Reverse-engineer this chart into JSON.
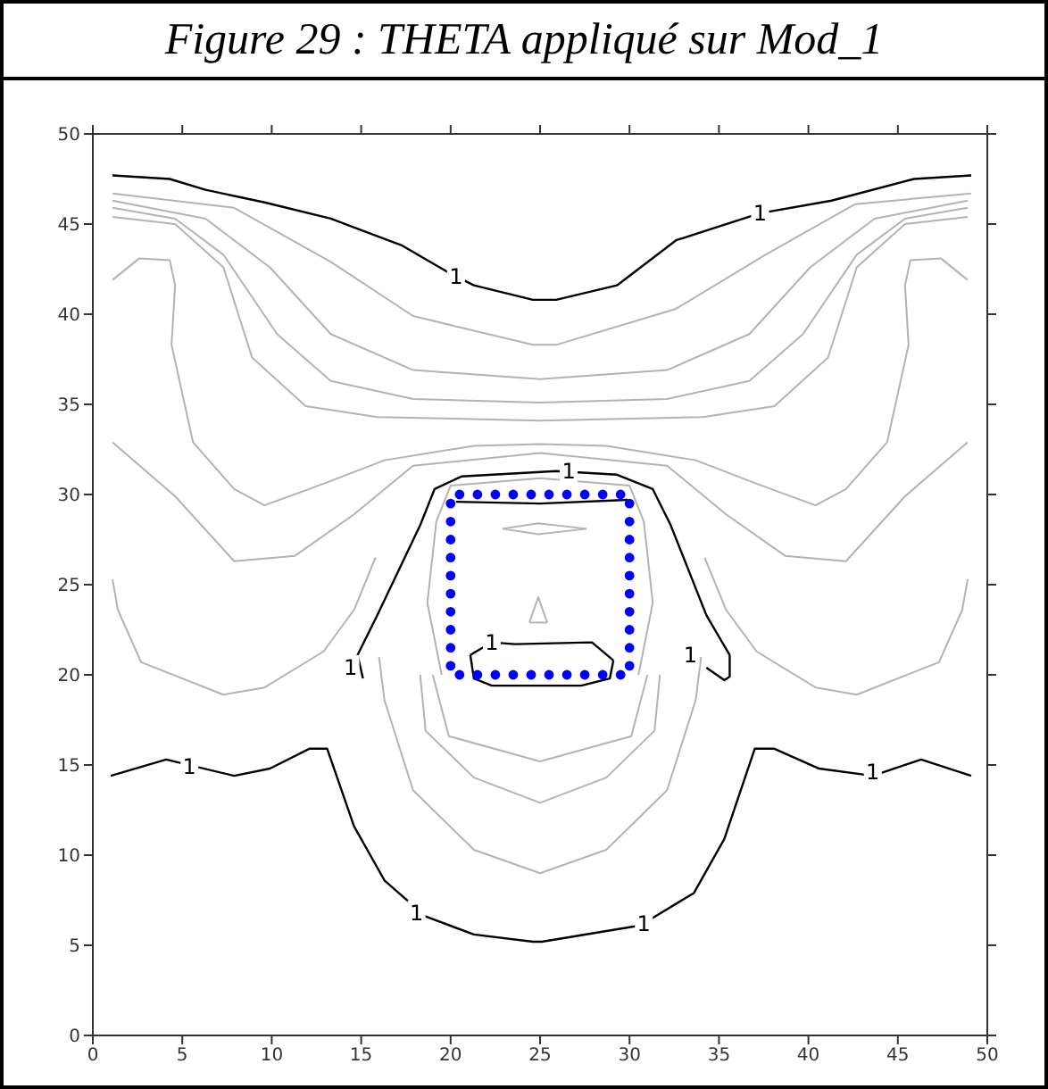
{
  "chart_data": {
    "type": "line",
    "title": "Figure 29 : THETA appliqué sur Mod_1",
    "xlim": [
      0,
      50
    ],
    "ylim": [
      0,
      50
    ],
    "xticks": [
      0,
      5,
      10,
      15,
      20,
      25,
      30,
      35,
      40,
      45,
      50
    ],
    "yticks": [
      0,
      5,
      10,
      15,
      20,
      25,
      30,
      35,
      40,
      45,
      50
    ],
    "grid": false,
    "marker": "none",
    "series": [
      {
        "type": "line",
        "color": "#000000",
        "x": [
          1.1,
          4.3,
          6.3,
          9.6,
          13.3,
          17.3,
          19.9,
          21.3,
          24.6,
          25.9,
          29.3,
          32.6,
          37.3,
          41.3,
          45.9,
          49.1
        ],
        "values": [
          47.7,
          47.5,
          46.9,
          46.2,
          45.3,
          43.8,
          42.3,
          41.6,
          40.8,
          40.8,
          41.6,
          44.1,
          45.6,
          46.3,
          47.5,
          47.7
        ]
      },
      {
        "type": "line",
        "color": "#000000",
        "x": [
          1.0,
          4.1,
          7.9,
          9.9,
          12.1,
          13.1,
          14.6,
          16.3,
          18.6,
          21.3,
          24.6,
          25.1,
          30.6,
          33.6,
          35.3,
          37.0,
          38.1,
          40.6,
          43.6,
          46.3,
          49.1
        ],
        "values": [
          14.4,
          15.3,
          14.4,
          14.8,
          15.9,
          15.9,
          11.6,
          8.6,
          6.6,
          5.6,
          5.2,
          5.2,
          6.1,
          7.9,
          10.9,
          15.9,
          15.9,
          14.8,
          14.4,
          15.3,
          14.4
        ]
      },
      {
        "type": "line",
        "color": "#000000",
        "x": [
          15.1,
          14.8,
          15.9,
          18.3,
          19.1,
          20.6,
          25.9,
          29.3,
          31.3,
          32.3,
          34.3,
          35.6,
          35.6,
          35.3,
          34.3
        ],
        "values": [
          19.8,
          21.1,
          23.3,
          28.3,
          30.3,
          31.0,
          31.3,
          31.1,
          30.3,
          28.3,
          23.3,
          21.1,
          19.9,
          19.7,
          20.4
        ]
      },
      {
        "color": "#000000",
        "x": [
          21.1,
          22.3,
          23.6,
          27.9,
          29.1
        ],
        "values": [
          21.1,
          21.8,
          21.7,
          21.8,
          20.8
        ]
      },
      {
        "color": "#000000",
        "x": [
          21.1,
          21.3,
          22.3,
          27.3,
          28.9,
          29.1
        ],
        "values": [
          21.1,
          19.8,
          19.4,
          19.4,
          19.8,
          20.8
        ]
      },
      {
        "type": "line",
        "color": "#000000",
        "x": [
          20.3,
          25.0,
          29.9
        ],
        "values": [
          29.6,
          29.5,
          29.7
        ]
      },
      {
        "type": "line",
        "color": "#b3b3b3",
        "x": [
          1.1,
          7.9,
          13.3,
          17.9,
          24.6,
          25.9,
          32.6,
          37.6,
          42.6,
          49.1
        ],
        "values": [
          46.7,
          45.9,
          42.9,
          39.9,
          38.3,
          38.3,
          40.3,
          43.3,
          46.1,
          46.7
        ]
      },
      {
        "type": "line",
        "color": "#b3b3b3",
        "x": [
          1.1,
          6.3,
          9.9,
          13.3,
          17.9,
          25.0,
          32.1,
          36.7,
          40.1,
          43.7,
          48.9
        ],
        "values": [
          46.3,
          45.3,
          42.6,
          38.9,
          36.9,
          36.4,
          36.9,
          38.9,
          42.6,
          45.3,
          46.3
        ]
      },
      {
        "type": "line",
        "color": "#b3b3b3",
        "x": [
          1.1,
          4.6,
          7.3,
          10.3,
          13.3,
          17.9,
          25.0,
          32.1,
          36.7,
          39.7,
          42.7,
          45.4,
          48.9
        ],
        "values": [
          45.9,
          45.3,
          43.3,
          38.9,
          36.3,
          35.3,
          35.1,
          35.3,
          36.3,
          38.9,
          43.3,
          45.3,
          45.9
        ]
      },
      {
        "type": "line",
        "color": "#b3b3b3",
        "x": [
          1.1,
          4.6,
          7.3,
          8.9,
          11.9,
          15.9,
          25.0,
          34.1,
          38.1,
          41.1,
          42.7,
          45.4,
          48.9
        ],
        "values": [
          45.4,
          45.0,
          42.6,
          37.6,
          34.9,
          34.3,
          34.1,
          34.3,
          34.9,
          37.6,
          42.6,
          45.0,
          45.4
        ]
      },
      {
        "type": "line",
        "color": "#b3b3b3",
        "x": [
          1.1,
          2.6,
          4.3,
          4.6,
          4.4,
          5.6,
          7.9,
          9.6,
          12.9,
          16.3,
          21.3,
          25.0,
          28.7,
          33.7,
          37.1,
          40.4,
          42.1,
          44.4,
          45.6,
          45.4,
          45.7,
          47.4,
          48.9
        ],
        "values": [
          41.9,
          43.1,
          43.0,
          41.6,
          38.3,
          32.9,
          30.3,
          29.4,
          30.6,
          31.9,
          32.7,
          32.8,
          32.7,
          31.9,
          30.6,
          29.4,
          30.3,
          32.9,
          38.3,
          41.6,
          43.0,
          43.1,
          41.9
        ]
      },
      {
        "type": "line",
        "color": "#b3b3b3",
        "x": [
          1.1,
          4.6,
          7.9,
          11.3,
          14.6,
          17.9,
          25.0,
          32.1,
          35.4,
          38.7,
          42.1,
          45.4,
          48.9
        ],
        "values": [
          32.9,
          29.9,
          26.3,
          26.6,
          28.9,
          31.6,
          32.3,
          31.6,
          28.9,
          26.6,
          26.3,
          29.9,
          32.9
        ]
      },
      {
        "type": "line",
        "color": "#b3b3b3",
        "x": [
          1.1,
          1.4,
          2.7,
          7.3,
          9.6,
          12.9,
          14.6,
          15.8
        ],
        "values": [
          25.3,
          23.6,
          20.7,
          18.9,
          19.3,
          21.3,
          23.6,
          26.5
        ]
      },
      {
        "type": "line",
        "color": "#b3b3b3",
        "x": [
          34.2,
          35.4,
          37.1,
          40.4,
          42.7,
          47.3,
          48.6,
          48.9
        ],
        "values": [
          26.5,
          23.6,
          21.3,
          19.3,
          18.9,
          20.7,
          23.6,
          25.3
        ]
      },
      {
        "type": "line",
        "color": "#b3b3b3",
        "x": [
          16.0,
          16.3,
          17.9,
          21.3,
          25.0,
          28.7,
          32.1,
          33.7,
          34.0
        ],
        "values": [
          21.0,
          18.6,
          13.6,
          10.3,
          9.0,
          10.3,
          13.6,
          18.6,
          21.0
        ]
      },
      {
        "type": "line",
        "color": "#b3b3b3",
        "x": [
          18.3,
          18.6,
          21.3,
          25.0,
          28.7,
          31.4,
          31.7
        ],
        "values": [
          20.0,
          16.9,
          14.3,
          12.9,
          14.3,
          16.9,
          20.0
        ]
      },
      {
        "type": "line",
        "color": "#b3b3b3",
        "x": [
          19.0,
          19.9,
          25.0,
          30.1,
          31.0
        ],
        "values": [
          20.0,
          16.6,
          15.2,
          16.6,
          20.0
        ]
      },
      {
        "type": "line",
        "color": "#b3b3b3",
        "x": [
          19.5,
          18.7,
          19.2,
          20.0,
          25.0,
          30.0,
          30.8,
          31.3,
          30.5
        ],
        "values": [
          20.0,
          24.0,
          28.5,
          30.5,
          30.9,
          30.5,
          28.5,
          24.0,
          20.0
        ]
      },
      {
        "color": "#b3b3b3",
        "x": [
          24.4,
          24.9,
          25.4
        ],
        "values": [
          22.9,
          24.3,
          22.9
        ]
      },
      {
        "color": "#b3b3b3",
        "x": [
          24.4,
          25.4
        ],
        "values": [
          22.9,
          22.9
        ]
      },
      {
        "color": "#b3b3b3",
        "x": [
          22.9,
          24.9,
          27.6
        ],
        "values": [
          28.1,
          28.4,
          28.1
        ]
      },
      {
        "color": "#b3b3b3",
        "x": [
          22.9,
          24.9,
          27.6
        ],
        "values": [
          28.1,
          27.8,
          28.1
        ]
      },
      {
        "type": "scatter",
        "color": "#0000ff",
        "marker": "circle",
        "x": [
          20.5,
          21.5,
          22.5,
          23.5,
          24.5,
          25.5,
          26.5,
          27.5,
          28.5,
          29.5,
          30,
          30,
          30,
          30,
          30,
          30,
          30,
          30,
          30,
          30,
          29.5,
          28.5,
          27.5,
          26.5,
          25.5,
          24.5,
          23.5,
          22.5,
          21.5,
          20.5,
          20,
          20,
          20,
          20,
          20,
          20,
          20,
          20,
          20,
          20
        ],
        "values": [
          30,
          30,
          30,
          30,
          30,
          30,
          30,
          30,
          30,
          30,
          29.5,
          28.5,
          27.5,
          26.5,
          25.5,
          24.5,
          23.5,
          22.5,
          21.5,
          20.5,
          20,
          20,
          20,
          20,
          20,
          20,
          20,
          20,
          20,
          20,
          20.5,
          21.5,
          22.5,
          23.5,
          24.5,
          25.5,
          26.5,
          27.5,
          28.5,
          29.5
        ]
      }
    ],
    "annotations": [
      {
        "text": "1",
        "x": 20.3,
        "y": 42.1
      },
      {
        "text": "1",
        "x": 37.3,
        "y": 45.6
      },
      {
        "text": "1",
        "x": 5.4,
        "y": 14.9
      },
      {
        "text": "1",
        "x": 18.1,
        "y": 6.8
      },
      {
        "text": "1",
        "x": 30.8,
        "y": 6.2
      },
      {
        "text": "1",
        "x": 43.6,
        "y": 14.6
      },
      {
        "text": "1",
        "x": 14.4,
        "y": 20.4
      },
      {
        "text": "1",
        "x": 26.6,
        "y": 31.3
      },
      {
        "text": "1",
        "x": 33.4,
        "y": 21.1
      },
      {
        "text": "1",
        "x": 22.3,
        "y": 21.8
      }
    ]
  }
}
